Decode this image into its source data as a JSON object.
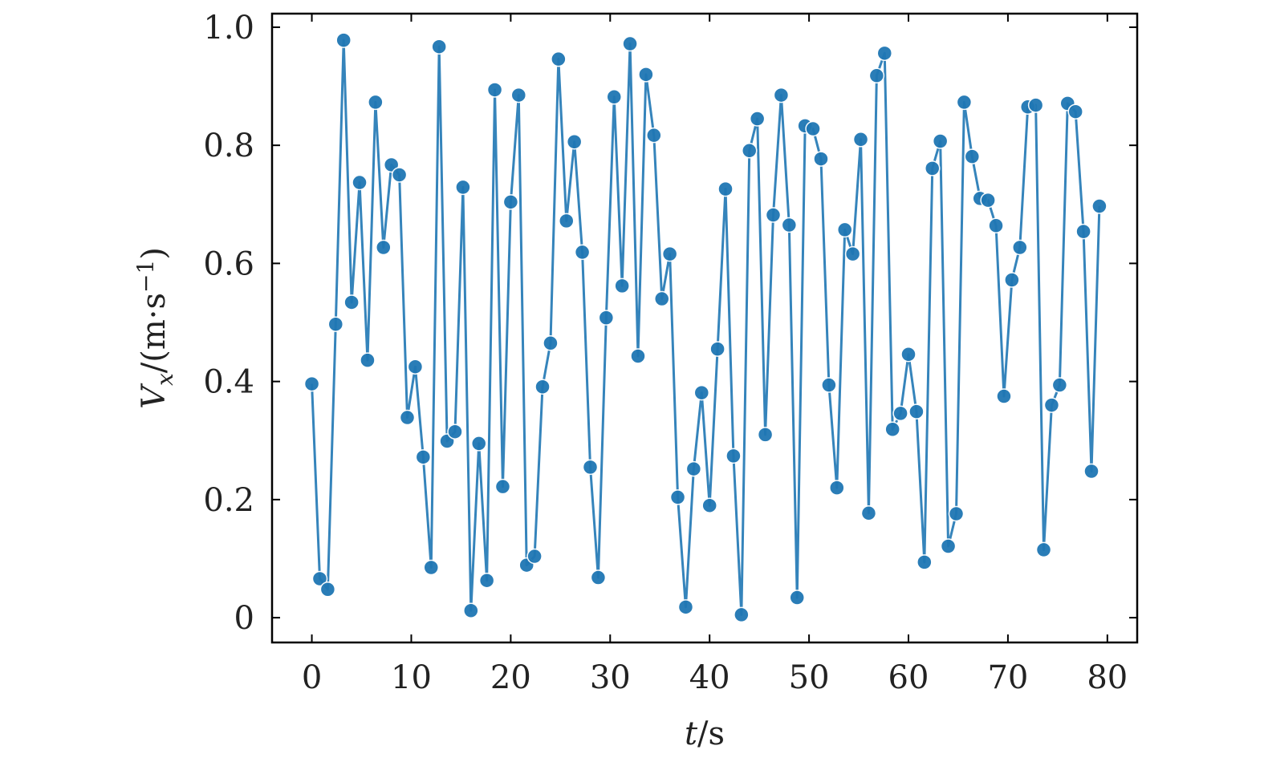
{
  "chart_data": {
    "type": "line",
    "title": "",
    "xlabel": {
      "var": "t",
      "unit": "s"
    },
    "ylabel": {
      "var": "V",
      "sub": "x",
      "unit": "(m·s",
      "sup": "−1",
      "close": ")"
    },
    "xlim": [
      -4.0,
      83.0
    ],
    "ylim": [
      -0.042,
      1.023
    ],
    "x_ticks": [
      0,
      10,
      20,
      30,
      40,
      50,
      60,
      70,
      80
    ],
    "x_tick_labels": [
      "0",
      "10",
      "20",
      "30",
      "40",
      "50",
      "60",
      "70",
      "80"
    ],
    "y_ticks": [
      0,
      0.2,
      0.4,
      0.6,
      0.8,
      1.0
    ],
    "y_tick_labels": [
      "0",
      "0.2",
      "0.4",
      "0.6",
      "0.8",
      "1.0"
    ],
    "grid": false,
    "series": [
      {
        "color": "#1f77b4",
        "marker": "circle",
        "x": [
          0,
          0.8,
          1.6,
          2.4,
          3.2,
          4.0,
          4.8,
          5.6,
          6.4,
          7.2,
          8.0,
          8.8,
          9.6,
          10.4,
          11.2,
          12.0,
          12.8,
          13.6,
          14.4,
          15.2,
          16.0,
          16.8,
          17.6,
          18.4,
          19.2,
          20.0,
          20.8,
          21.6,
          22.4,
          23.2,
          24.0,
          24.8,
          25.6,
          26.4,
          27.2,
          28.0,
          28.8,
          29.6,
          30.4,
          31.2,
          32.0,
          32.8,
          33.6,
          34.4,
          35.2,
          36.0,
          36.8,
          37.6,
          38.4,
          39.2,
          40.0,
          40.8,
          41.6,
          42.4,
          43.2,
          44.0,
          44.8,
          45.6,
          46.4,
          47.2,
          48.0,
          48.8,
          49.6,
          50.4,
          51.2,
          52.0,
          52.8,
          53.6,
          54.4,
          55.2,
          56.0,
          56.8,
          57.6,
          58.4,
          59.2,
          60.0,
          60.8,
          61.6,
          62.4,
          63.2,
          64.0,
          64.8,
          65.6,
          66.4,
          67.2,
          68.0,
          68.8,
          69.6,
          70.4,
          71.2,
          72.0,
          72.8,
          73.6,
          74.4,
          75.2,
          76.0,
          76.8,
          77.6,
          78.4,
          79.2
        ],
        "y": [
          0.396,
          0.066,
          0.048,
          0.497,
          0.978,
          0.534,
          0.737,
          0.436,
          0.873,
          0.627,
          0.767,
          0.75,
          0.339,
          0.425,
          0.272,
          0.085,
          0.967,
          0.299,
          0.315,
          0.729,
          0.012,
          0.295,
          0.063,
          0.894,
          0.222,
          0.704,
          0.885,
          0.089,
          0.104,
          0.391,
          0.465,
          0.946,
          0.672,
          0.806,
          0.619,
          0.255,
          0.068,
          0.508,
          0.882,
          0.562,
          0.972,
          0.443,
          0.92,
          0.817,
          0.54,
          0.616,
          0.204,
          0.018,
          0.252,
          0.381,
          0.19,
          0.455,
          0.726,
          0.274,
          0.005,
          0.791,
          0.845,
          0.31,
          0.682,
          0.885,
          0.665,
          0.034,
          0.833,
          0.828,
          0.777,
          0.394,
          0.22,
          0.657,
          0.616,
          0.81,
          0.177,
          0.918,
          0.956,
          0.319,
          0.346,
          0.446,
          0.349,
          0.094,
          0.761,
          0.807,
          0.121,
          0.176,
          0.873,
          0.781,
          0.71,
          0.707,
          0.664,
          0.375,
          0.572,
          0.627,
          0.865,
          0.868,
          0.115,
          0.36,
          0.394,
          0.871,
          0.857,
          0.654,
          0.248,
          0.697
        ]
      }
    ]
  }
}
